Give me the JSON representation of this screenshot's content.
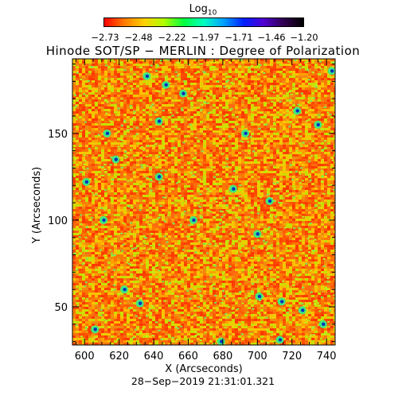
{
  "colorbar": {
    "title_main": "Log",
    "title_sub": "10",
    "tick_labels": [
      "−2.73",
      "−2.48",
      "−2.22",
      "−1.97",
      "−1.71",
      "−1.46",
      "−1.20"
    ],
    "range": [
      -2.73,
      -1.2
    ],
    "colors": [
      "#ff0000",
      "#ff7a00",
      "#ffd000",
      "#b0ff00",
      "#00ff40",
      "#00ffc0",
      "#00a0ff",
      "#0020ff",
      "#5000d0",
      "#300050",
      "#000000"
    ]
  },
  "title": "Hinode SOT/SP − MERLIN : Degree of Polarization",
  "footer": "28−Sep−2019 21:31:01.321",
  "chart_data": {
    "type": "heatmap",
    "title": "Hinode SOT/SP − MERLIN : Degree of Polarization",
    "xlabel": "X (Arcseconds)",
    "ylabel": "Y (Arcseconds)",
    "xlim": [
      593,
      745
    ],
    "ylim": [
      28,
      193
    ],
    "x_ticks": [
      600,
      620,
      640,
      660,
      680,
      700,
      720,
      740
    ],
    "y_ticks": [
      50,
      100,
      150
    ],
    "value_label": "Log10 degree of polarization",
    "value_range": [
      -2.73,
      -1.2
    ],
    "dominant_range": [
      -2.73,
      -2.3
    ],
    "high_polarization_patches": [
      {
        "x": 601,
        "y": 122
      },
      {
        "x": 611,
        "y": 100
      },
      {
        "x": 618,
        "y": 135
      },
      {
        "x": 613,
        "y": 150
      },
      {
        "x": 636,
        "y": 183
      },
      {
        "x": 643,
        "y": 157
      },
      {
        "x": 647,
        "y": 178
      },
      {
        "x": 657,
        "y": 173
      },
      {
        "x": 663,
        "y": 100
      },
      {
        "x": 686,
        "y": 118
      },
      {
        "x": 693,
        "y": 150
      },
      {
        "x": 707,
        "y": 111
      },
      {
        "x": 723,
        "y": 163
      },
      {
        "x": 735,
        "y": 155
      },
      {
        "x": 743,
        "y": 186
      },
      {
        "x": 623,
        "y": 60
      },
      {
        "x": 632,
        "y": 52
      },
      {
        "x": 701,
        "y": 56
      },
      {
        "x": 714,
        "y": 53
      },
      {
        "x": 726,
        "y": 48
      },
      {
        "x": 738,
        "y": 40
      },
      {
        "x": 606,
        "y": 37
      },
      {
        "x": 679,
        "y": 30
      },
      {
        "x": 713,
        "y": 31
      },
      {
        "x": 700,
        "y": 92
      },
      {
        "x": 643,
        "y": 125
      }
    ]
  }
}
